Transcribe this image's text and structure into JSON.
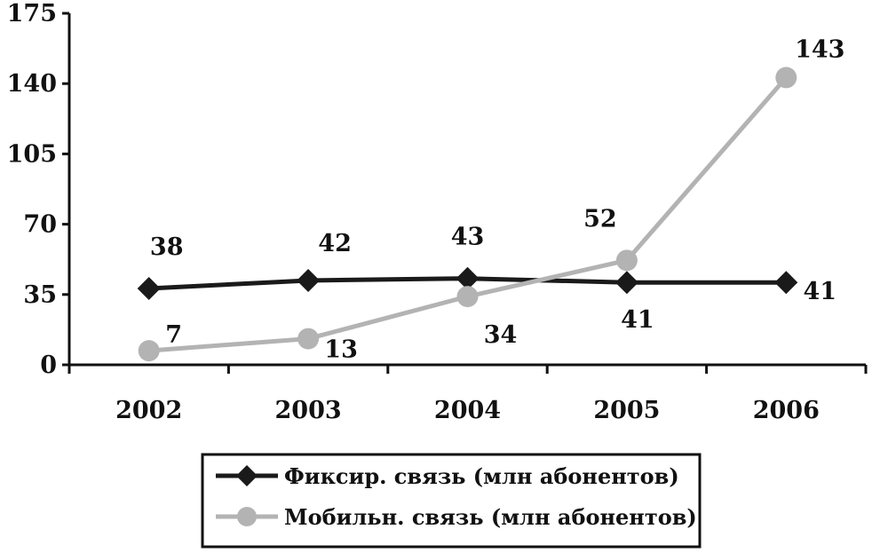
{
  "chart_data": {
    "type": "line",
    "categories": [
      "2002",
      "2003",
      "2004",
      "2005",
      "2006"
    ],
    "y_ticks": [
      "0",
      "35",
      "70",
      "105",
      "140",
      "175"
    ],
    "ylim": [
      0,
      175
    ],
    "grid": false,
    "legend_position": "bottom",
    "series": [
      {
        "name": "Фиксир. связь (млн абонентов)",
        "values": [
          38,
          42,
          43,
          41,
          41
        ],
        "labels": [
          "38",
          "42",
          "43",
          "41",
          "41"
        ],
        "color": "#1a1a1a",
        "marker": "diamond"
      },
      {
        "name": "Мобильн. связь (млн абонентов)",
        "values": [
          7,
          13,
          34,
          52,
          143
        ],
        "labels": [
          "7",
          "13",
          "34",
          "52",
          "143"
        ],
        "color": "#b3b3b3",
        "marker": "circle"
      }
    ]
  }
}
